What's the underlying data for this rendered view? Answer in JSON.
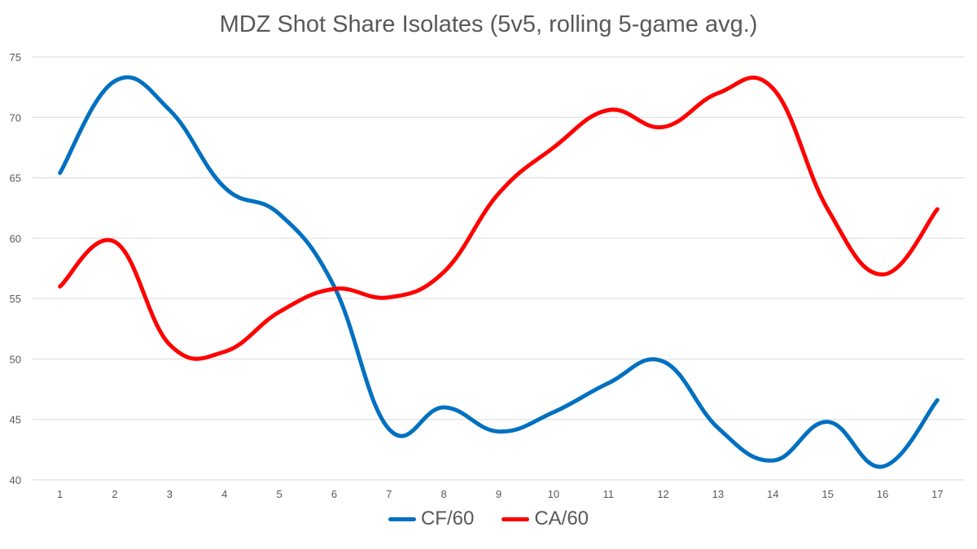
{
  "chart_data": {
    "type": "line",
    "title": "MDZ Shot Share Isolates (5v5, rolling 5-game avg.)",
    "xlabel": "",
    "ylabel": "",
    "categories": [
      "1",
      "2",
      "3",
      "4",
      "5",
      "6",
      "7",
      "8",
      "9",
      "10",
      "11",
      "12",
      "13",
      "14",
      "15",
      "16",
      "17"
    ],
    "ylim": [
      40,
      75
    ],
    "yticks": [
      40,
      45,
      50,
      55,
      60,
      65,
      70,
      75
    ],
    "grid": true,
    "legend_position": "bottom",
    "series": [
      {
        "name": "CF/60",
        "color": "#0070c0",
        "values": [
          65.4,
          73.0,
          70.6,
          64.2,
          62.0,
          56.0,
          44.2,
          46.0,
          44.0,
          45.6,
          48.0,
          49.8,
          44.3,
          41.6,
          44.8,
          41.1,
          46.6
        ]
      },
      {
        "name": "CA/60",
        "color": "#ff0000",
        "values": [
          56.0,
          59.7,
          51.2,
          50.6,
          53.9,
          55.8,
          55.1,
          57.2,
          63.7,
          67.5,
          70.6,
          69.2,
          72.0,
          72.4,
          62.4,
          57.0,
          62.4
        ]
      }
    ]
  }
}
